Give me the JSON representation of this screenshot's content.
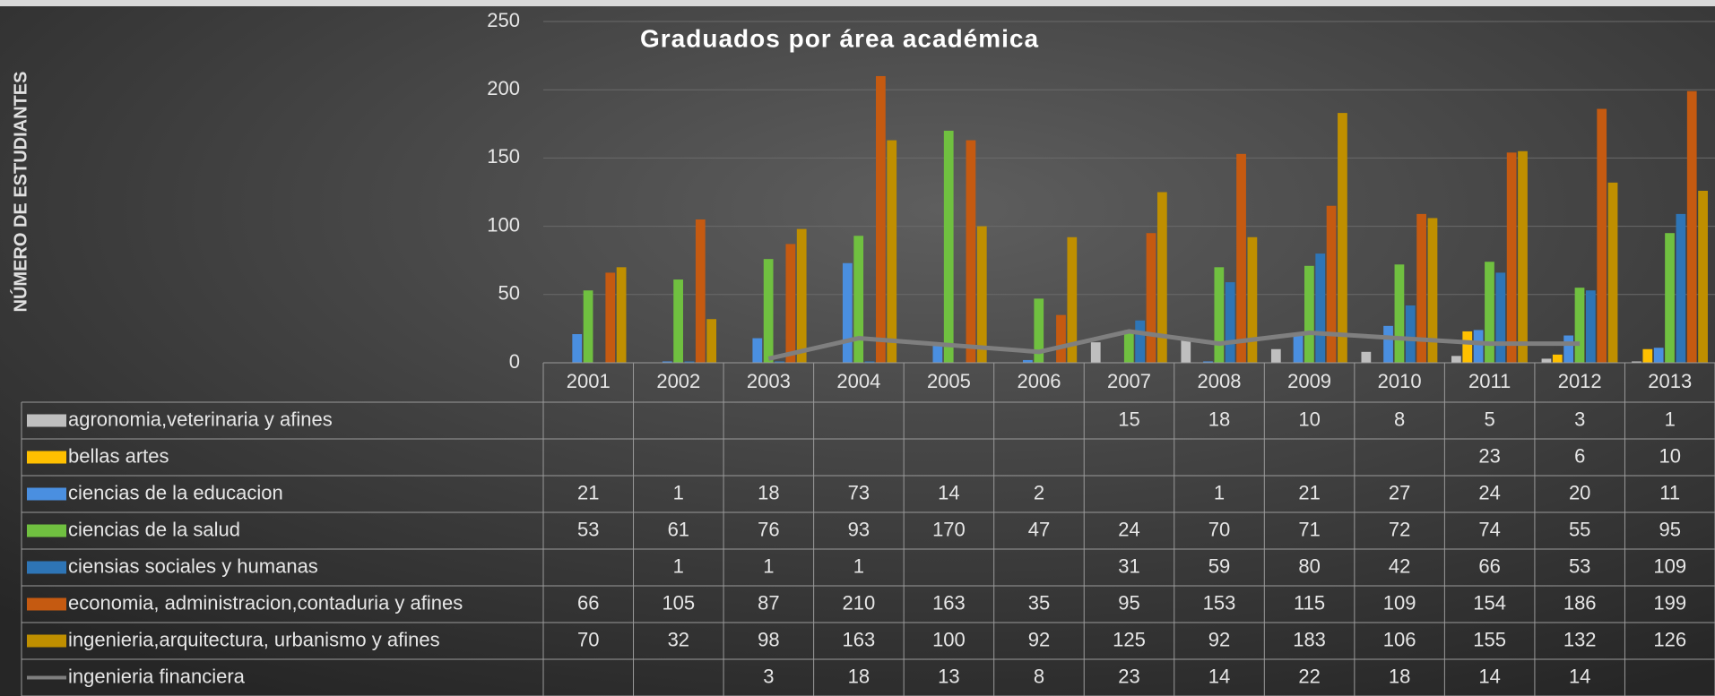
{
  "chart_data": {
    "type": "bar",
    "title": "Graduados por área académica",
    "y_label": "NÚMERO DE ESTUDIANTES",
    "categories": [
      "2001",
      "2002",
      "2003",
      "2004",
      "2005",
      "2006",
      "2007",
      "2008",
      "2009",
      "2010",
      "2011",
      "2012",
      "2013"
    ],
    "ylim": [
      0,
      250
    ],
    "yticks": [
      0,
      50,
      100,
      150,
      200,
      250
    ],
    "grid": true,
    "series": [
      {
        "name": "agronomia,veterinaria y afines",
        "color": "#bfbfbf",
        "values": [
          null,
          null,
          null,
          null,
          null,
          null,
          15,
          18,
          10,
          8,
          5,
          3,
          1
        ]
      },
      {
        "name": "bellas artes",
        "color": "#ffc000",
        "values": [
          null,
          null,
          null,
          null,
          null,
          null,
          null,
          null,
          null,
          null,
          23,
          6,
          10
        ]
      },
      {
        "name": "ciencias de la educacion",
        "color": "#4a8fe0",
        "values": [
          21,
          1,
          18,
          73,
          14,
          2,
          null,
          1,
          21,
          27,
          24,
          20,
          11
        ]
      },
      {
        "name": "ciencias de la salud",
        "color": "#70c040",
        "values": [
          53,
          61,
          76,
          93,
          170,
          47,
          24,
          70,
          71,
          72,
          74,
          55,
          95
        ]
      },
      {
        "name": "ciensias sociales y humanas",
        "color": "#2e75b6",
        "values": [
          null,
          1,
          1,
          1,
          null,
          null,
          31,
          59,
          80,
          42,
          66,
          53,
          109
        ]
      },
      {
        "name": "economia, administracion,contaduria y afines",
        "color": "#c55a11",
        "values": [
          66,
          105,
          87,
          210,
          163,
          35,
          95,
          153,
          115,
          109,
          154,
          186,
          199
        ]
      },
      {
        "name": "ingenieria,arquitectura, urbanismo y afines",
        "color": "#bf8f00",
        "values": [
          70,
          32,
          98,
          163,
          100,
          92,
          125,
          92,
          183,
          106,
          155,
          132,
          126
        ]
      },
      {
        "name": "ingenieria financiera",
        "color": "#7f7f7f",
        "type": "line",
        "values": [
          null,
          null,
          3,
          18,
          13,
          8,
          23,
          14,
          22,
          18,
          14,
          14,
          null
        ]
      }
    ]
  }
}
